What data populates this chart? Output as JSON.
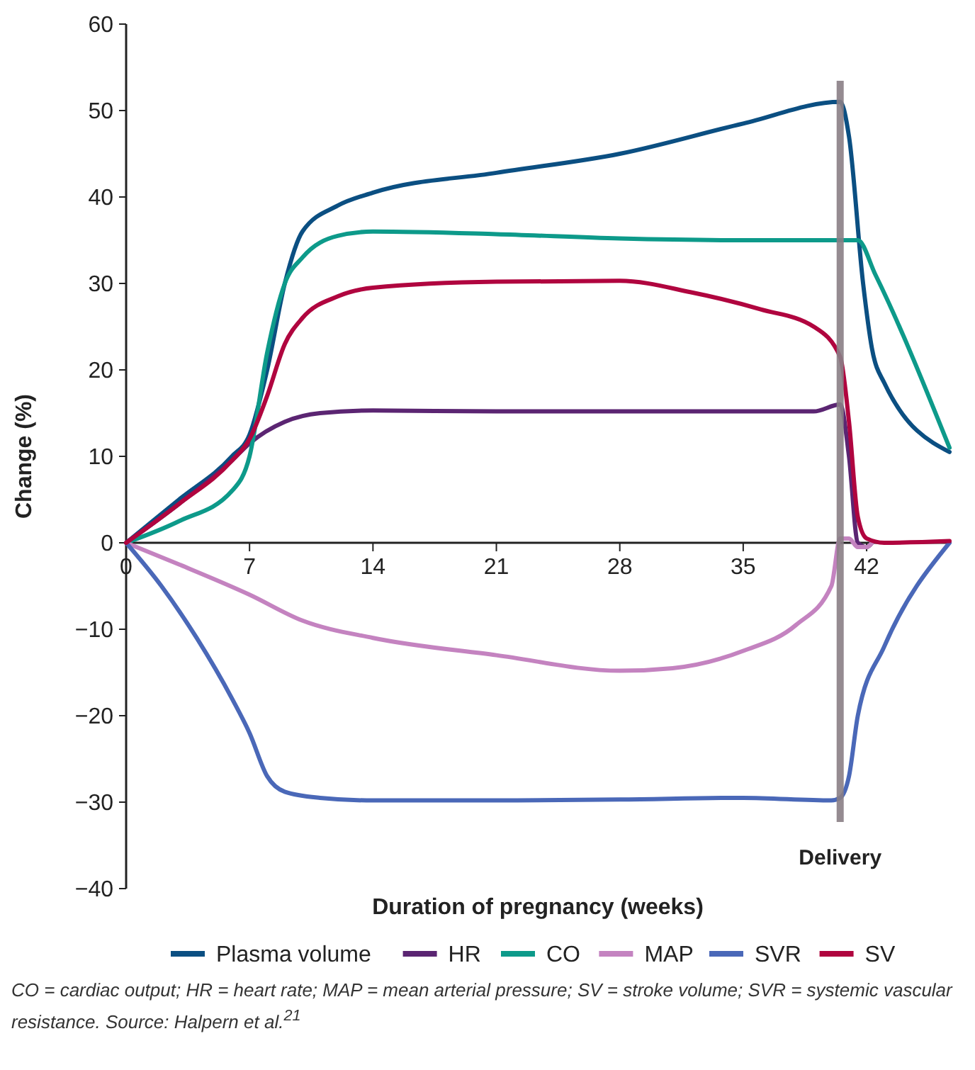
{
  "chart_data": {
    "type": "line",
    "xlabel": "Duration of pregnancy (weeks)",
    "ylabel": "Change (%)",
    "xlim": [
      0,
      46.7
    ],
    "xticks": [
      0,
      7,
      14,
      21,
      28,
      35,
      42
    ],
    "ylim": [
      -40,
      60
    ],
    "yticks": [
      {
        "value": -40,
        "label": "−40"
      },
      {
        "value": -30,
        "label": "−30"
      },
      {
        "value": -20,
        "label": "−20"
      },
      {
        "value": -10,
        "label": "−10"
      },
      0,
      10,
      20,
      30,
      40,
      50,
      60
    ],
    "grid": false,
    "legend": "bottom",
    "marker": "none",
    "line_style": "solid",
    "ref_lines": [
      {
        "axis": "x",
        "value": 40.5,
        "label": "Delivery",
        "color": "#8a7f86"
      }
    ],
    "series": [
      {
        "name": "Plasma volume",
        "color": "#0b4f82",
        "x": [
          0,
          3,
          6,
          7,
          8,
          9,
          10,
          12,
          14,
          21,
          28,
          35,
          40.5,
          41,
          41.8,
          42.3,
          43,
          46.7
        ],
        "values": [
          0,
          5,
          10,
          12.5,
          20,
          30,
          36,
          39,
          40.5,
          42.8,
          45,
          48.5,
          51,
          47,
          30,
          22.5,
          18.5,
          10.5
        ]
      },
      {
        "name": "HR",
        "color": "#5b2572",
        "x": [
          0,
          3,
          6,
          7,
          9,
          11,
          14,
          21,
          28,
          35,
          39,
          40.5,
          41,
          41.5,
          42,
          42.3
        ],
        "values": [
          0,
          4.5,
          9.5,
          11.5,
          14,
          15,
          15.3,
          15.2,
          15.2,
          15.2,
          15.2,
          16,
          10,
          0,
          -0.5,
          0
        ]
      },
      {
        "name": "CO",
        "color": "#0d9a8a",
        "x": [
          0,
          3,
          6,
          7,
          8,
          9,
          10,
          12,
          14,
          21,
          28,
          35,
          40.5,
          41.5,
          42.5,
          46.7
        ],
        "values": [
          0,
          2.5,
          6,
          10,
          22,
          30,
          33,
          35.5,
          36,
          35.7,
          35.2,
          35,
          35,
          35,
          31,
          11
        ]
      },
      {
        "name": "MAP",
        "color": "#c483c0",
        "x": [
          0,
          3,
          7,
          10,
          14,
          21,
          28,
          31,
          35,
          38,
          40,
          40.5,
          41,
          41.5,
          42,
          42.3
        ],
        "values": [
          0,
          -2.5,
          -6,
          -9,
          -11,
          -13,
          -14.8,
          -14.5,
          -12.5,
          -9.5,
          -5,
          0.5,
          0.5,
          -0.5,
          -0.5,
          0
        ]
      },
      {
        "name": "SVR",
        "color": "#4a68b8",
        "x": [
          0,
          2,
          4,
          6,
          7,
          8,
          9,
          11,
          14,
          21,
          28,
          35,
          40,
          40.5,
          41,
          41.5,
          43,
          46.7
        ],
        "values": [
          0,
          -5,
          -11,
          -18,
          -22,
          -27,
          -28.8,
          -29.5,
          -29.8,
          -29.8,
          -29.7,
          -29.5,
          -29.8,
          -29.5,
          -27,
          -20,
          -12,
          0
        ]
      },
      {
        "name": "SV",
        "color": "#b0053f",
        "x": [
          0,
          3,
          6,
          7,
          8,
          9,
          10,
          12,
          14,
          21,
          28,
          32,
          36,
          39,
          40.5,
          41,
          41.5,
          42,
          43,
          46.7
        ],
        "values": [
          0,
          4.5,
          9.5,
          12,
          17,
          23,
          26,
          28.5,
          29.5,
          30.2,
          30.3,
          29,
          27,
          25,
          21.5,
          14,
          3,
          0.5,
          0,
          0.2
        ]
      }
    ],
    "annotations": [
      "CO = cardiac output; HR = heart rate; MAP = mean arterial pressure; SV = stroke volume; SVR = systemic vascular resistance. Source: Halpern et al.$^{21}$"
    ]
  }
}
